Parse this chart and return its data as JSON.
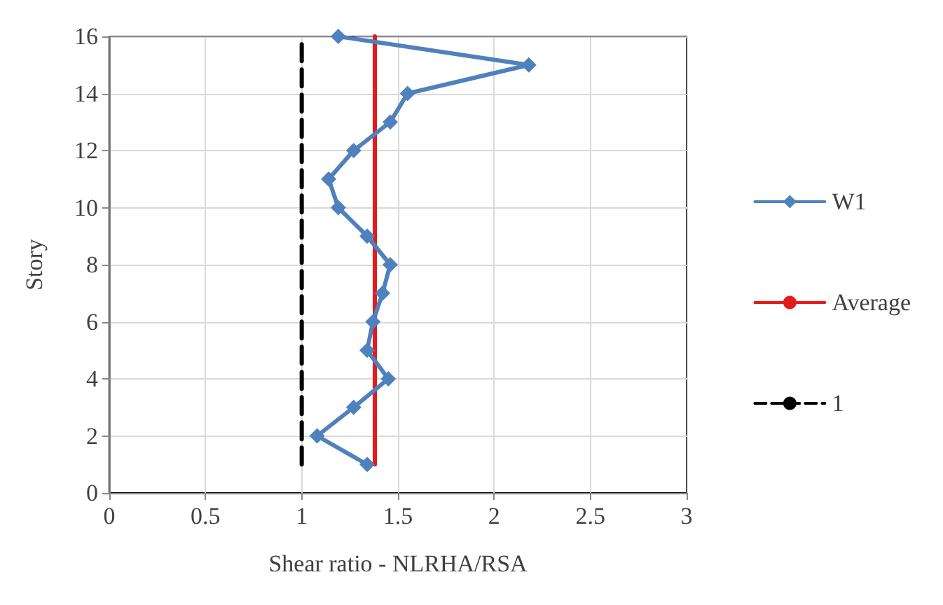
{
  "chart_data": {
    "type": "line",
    "xlabel": "Shear ratio - NLRHA/RSA",
    "ylabel": "Story",
    "xlim": [
      0,
      3
    ],
    "xticks": [
      0,
      0.5,
      1,
      1.5,
      2,
      2.5,
      3
    ],
    "ylim": [
      0,
      16
    ],
    "yticks": [
      0,
      2,
      4,
      6,
      8,
      10,
      12,
      14,
      16
    ],
    "grid": true,
    "legend": "right",
    "series": [
      {
        "name": "W1",
        "color": "#4f81bd",
        "marker": "diamond",
        "line_style": "solid",
        "x": [
          1.34,
          1.08,
          1.27,
          1.45,
          1.34,
          1.37,
          1.42,
          1.46,
          1.34,
          1.19,
          1.14,
          1.27,
          1.46,
          1.55,
          2.18,
          1.19
        ],
        "values": [
          1,
          2,
          3,
          4,
          5,
          6,
          7,
          8,
          9,
          10,
          11,
          12,
          13,
          14,
          15,
          16
        ]
      },
      {
        "name": "Average",
        "color": "#e41a1c",
        "marker": "none",
        "line_style": "solid",
        "x": [
          1.38,
          1.38
        ],
        "values": [
          1,
          16
        ]
      },
      {
        "name": "1",
        "color": "#000000",
        "marker": "none",
        "line_style": "dashed",
        "x": [
          1,
          1
        ],
        "values": [
          1,
          16
        ]
      }
    ]
  }
}
